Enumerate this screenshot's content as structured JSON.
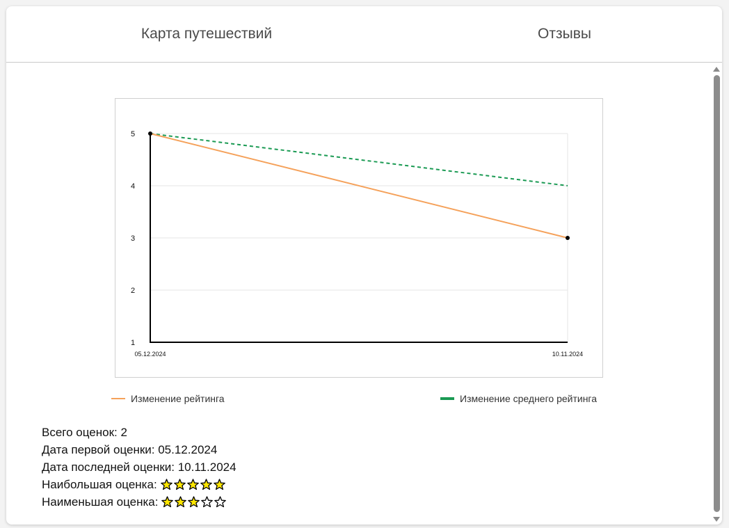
{
  "tabs": [
    {
      "label": "Карта путешествий"
    },
    {
      "label": "Отзывы"
    }
  ],
  "colors": {
    "rating_line": "#f5a15a",
    "average_line": "#1a9a53",
    "star_fill": "#ffe600",
    "point": "#000000"
  },
  "chart_data": {
    "type": "line",
    "x": [
      "05.12.2024",
      "10.11.2024"
    ],
    "series": [
      {
        "name": "Изменение рейтинга",
        "values": [
          5,
          3
        ],
        "style": "solid",
        "color": "#f5a15a"
      },
      {
        "name": "Изменение среднего рейтинга",
        "values": [
          5,
          4
        ],
        "style": "dashed",
        "color": "#1a9a53"
      }
    ],
    "ylim": [
      1,
      5
    ],
    "yticks": [
      "1",
      "2",
      "3",
      "4",
      "5"
    ],
    "grid": true,
    "legend_position": "bottom"
  },
  "stats": {
    "total": "Всего оценок: 2",
    "first_date": "Дата первой оценки: 05.12.2024",
    "last_date": "Дата последней оценки: 10.11.2024",
    "max_label": "Наибольшая оценка:",
    "max_stars": 5,
    "min_label": "Наименьшая оценка:",
    "min_stars": 3,
    "stars_total": 5
  }
}
